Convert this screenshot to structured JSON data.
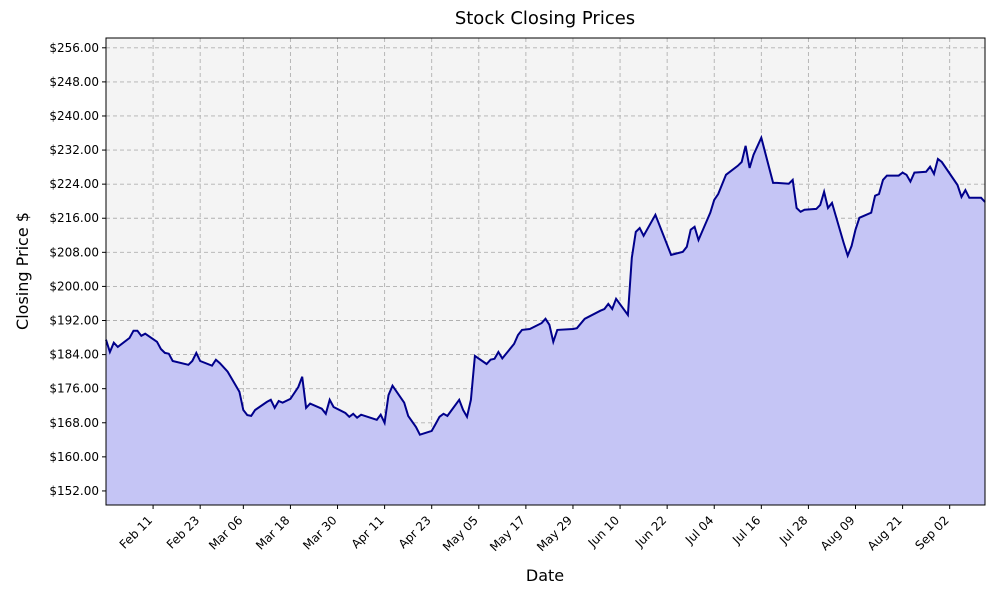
{
  "chart_data": {
    "type": "area",
    "title": "Stock Closing Prices",
    "x_label": "Date",
    "y_label": "Closing Price $",
    "grid": true,
    "xlim": [
      "Jan 30",
      "Sep 11"
    ],
    "xticks": [
      "Feb 11",
      "Feb 23",
      "Mar 06",
      "Mar 18",
      "Mar 30",
      "Apr 11",
      "Apr 23",
      "May 05",
      "May 17",
      "May 29",
      "Jun 10",
      "Jun 22",
      "Jul 04",
      "Jul 16",
      "Jul 28",
      "Aug 09",
      "Aug 21",
      "Sep 02"
    ],
    "ylim": [
      148.7,
      258.3
    ],
    "yticks": [
      {
        "value": 152,
        "label": "$152.00"
      },
      {
        "value": 160,
        "label": "$160.00"
      },
      {
        "value": 168,
        "label": "$168.00"
      },
      {
        "value": 176,
        "label": "$176.00"
      },
      {
        "value": 184,
        "label": "$184.00"
      },
      {
        "value": 192,
        "label": "$192.00"
      },
      {
        "value": 200,
        "label": "$200.00"
      },
      {
        "value": 208,
        "label": "$208.00"
      },
      {
        "value": 216,
        "label": "$216.00"
      },
      {
        "value": 224,
        "label": "$224.00"
      },
      {
        "value": 232,
        "label": "$232.00"
      },
      {
        "value": 240,
        "label": "$240.00"
      },
      {
        "value": 248,
        "label": "$248.00"
      },
      {
        "value": 256,
        "label": "$256.00"
      }
    ],
    "line_color": "#00008b",
    "fill_color": "#c5c5f5",
    "x": [
      "Jan 30",
      "Jan 31",
      "Feb 01",
      "Feb 02",
      "Feb 05",
      "Feb 06",
      "Feb 07",
      "Feb 08",
      "Feb 09",
      "Feb 12",
      "Feb 13",
      "Feb 14",
      "Feb 15",
      "Feb 16",
      "Feb 20",
      "Feb 21",
      "Feb 22",
      "Feb 23",
      "Feb 26",
      "Feb 27",
      "Feb 28",
      "Mar 02",
      "Mar 05",
      "Mar 06",
      "Mar 07",
      "Mar 08",
      "Mar 09",
      "Mar 12",
      "Mar 13",
      "Mar 14",
      "Mar 15",
      "Mar 16",
      "Mar 18",
      "Mar 20",
      "Mar 21",
      "Mar 22",
      "Mar 23",
      "Mar 26",
      "Mar 27",
      "Mar 28",
      "Mar 29",
      "Apr 01",
      "Apr 02",
      "Apr 03",
      "Apr 04",
      "Apr 05",
      "Apr 09",
      "Apr 10",
      "Apr 11",
      "Apr 12",
      "Apr 13",
      "Apr 16",
      "Apr 17",
      "Apr 19",
      "Apr 20",
      "Apr 23",
      "Apr 24",
      "Apr 25",
      "Apr 26",
      "Apr 27",
      "Apr 30",
      "May 01",
      "May 02",
      "May 03",
      "May 04",
      "May 07",
      "May 08",
      "May 09",
      "May 10",
      "May 11",
      "May 14",
      "May 15",
      "May 16",
      "May 18",
      "May 21",
      "May 22",
      "May 23",
      "May 24",
      "May 25",
      "May 29",
      "May 30",
      "Jun 01",
      "Jun 05",
      "Jun 06",
      "Jun 07",
      "Jun 08",
      "Jun 09",
      "Jun 12",
      "Jun 13",
      "Jun 14",
      "Jun 15",
      "Jun 16",
      "Jun 19",
      "Jun 23",
      "Jun 26",
      "Jun 27",
      "Jun 28",
      "Jun 29",
      "Jun 30",
      "Jul 03",
      "Jul 04",
      "Jul 05",
      "Jul 07",
      "Jul 10",
      "Jul 11",
      "Jul 12",
      "Jul 13",
      "Jul 14",
      "Jul 16",
      "Jul 19",
      "Jul 20",
      "Jul 23",
      "Jul 24",
      "Jul 25",
      "Jul 26",
      "Jul 27",
      "Jul 30",
      "Jul 31",
      "Aug 01",
      "Aug 02",
      "Aug 03",
      "Aug 06",
      "Aug 07",
      "Aug 08",
      "Aug 09",
      "Aug 10",
      "Aug 13",
      "Aug 14",
      "Aug 15",
      "Aug 16",
      "Aug 17",
      "Aug 20",
      "Aug 21",
      "Aug 22",
      "Aug 23",
      "Aug 24",
      "Aug 27",
      "Aug 28",
      "Aug 29",
      "Aug 30",
      "Aug 31",
      "Sep 04",
      "Sep 05",
      "Sep 06",
      "Sep 07",
      "Sep 10",
      "Sep 11"
    ],
    "values": [
      187.5,
      184.6,
      186.8,
      185.8,
      187.9,
      189.6,
      189.6,
      188.4,
      188.9,
      187.0,
      185.3,
      184.4,
      184.2,
      182.5,
      181.6,
      182.5,
      184.4,
      182.5,
      181.4,
      182.8,
      182.0,
      180.0,
      175.3,
      171.0,
      169.8,
      169.6,
      171.0,
      172.9,
      173.4,
      171.5,
      173.1,
      172.7,
      173.6,
      176.4,
      178.8,
      171.5,
      172.5,
      171.3,
      170.1,
      173.4,
      171.7,
      170.3,
      169.4,
      170.1,
      169.2,
      169.9,
      168.7,
      169.9,
      168.0,
      174.5,
      176.7,
      172.7,
      169.6,
      167.0,
      165.2,
      166.1,
      167.7,
      169.4,
      170.1,
      169.6,
      173.4,
      171.0,
      169.4,
      173.4,
      183.7,
      181.8,
      182.8,
      183.0,
      184.6,
      183.1,
      186.5,
      188.6,
      189.8,
      190.0,
      191.4,
      192.4,
      191.0,
      187.0,
      189.8,
      190.0,
      190.2,
      192.4,
      194.3,
      194.7,
      195.9,
      194.7,
      197.1,
      193.3,
      206.7,
      212.8,
      213.7,
      211.9,
      216.8,
      207.4,
      208.1,
      209.3,
      213.3,
      214.0,
      210.9,
      217.3,
      220.3,
      221.7,
      226.2,
      228.3,
      229.2,
      233.0,
      227.8,
      230.9,
      234.9,
      224.3,
      224.3,
      224.1,
      225.0,
      218.4,
      217.5,
      218.0,
      218.2,
      219.1,
      222.2,
      218.4,
      219.6,
      210.2,
      207.2,
      209.5,
      213.3,
      216.1,
      217.3,
      221.3,
      221.7,
      225.0,
      226.0,
      226.0,
      226.7,
      226.2,
      224.6,
      226.7,
      226.9,
      228.1,
      226.4,
      229.9,
      229.2,
      223.8,
      221.0,
      222.6,
      220.8,
      220.8,
      219.8
    ]
  }
}
